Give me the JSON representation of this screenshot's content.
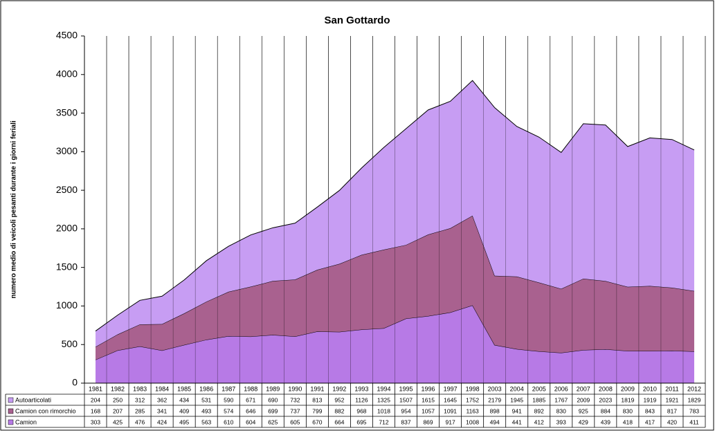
{
  "chart_data": {
    "type": "stacked_area",
    "title": "San Gottardo",
    "y_label": "numero medio di veicoli pesanti durante i giorni feriali",
    "categories": [
      "1981",
      "1982",
      "1983",
      "1984",
      "1985",
      "1986",
      "1987",
      "1988",
      "1989",
      "1990",
      "1991",
      "1992",
      "1993",
      "1994",
      "1995",
      "1996",
      "1997",
      "1998",
      "2003",
      "2004",
      "2005",
      "2006",
      "2007",
      "2008",
      "2009",
      "2010",
      "2011",
      "2012"
    ],
    "series": [
      {
        "name": "Camion",
        "color": "#b77ae6",
        "values": [
          303,
          425,
          476,
          424,
          495,
          563,
          610,
          604,
          625,
          605,
          670,
          664,
          695,
          712,
          837,
          869,
          917,
          1008,
          494,
          441,
          412,
          393,
          429,
          439,
          418,
          417,
          420,
          411
        ]
      },
      {
        "name": "Camion con rimorchio",
        "color": "#a9618f",
        "values": [
          168,
          207,
          285,
          341,
          409,
          493,
          574,
          646,
          699,
          737,
          799,
          882,
          968,
          1018,
          954,
          1057,
          1091,
          1163,
          898,
          941,
          892,
          830,
          925,
          884,
          830,
          843,
          817,
          783
        ]
      },
      {
        "name": "Autoarticolati",
        "color": "#c79df3",
        "values": [
          204,
          250,
          312,
          362,
          434,
          531,
          590,
          671,
          690,
          732,
          813,
          952,
          1126,
          1325,
          1507,
          1615,
          1645,
          1752,
          2179,
          1945,
          1885,
          1767,
          2009,
          2023,
          1819,
          1919,
          1921,
          1829
        ]
      }
    ],
    "ylim": [
      0,
      4500
    ],
    "yticks": [
      0,
      500,
      1000,
      1500,
      2000,
      2500,
      3000,
      3500,
      4000,
      4500
    ],
    "vertical_grid": true,
    "data_table": true
  }
}
